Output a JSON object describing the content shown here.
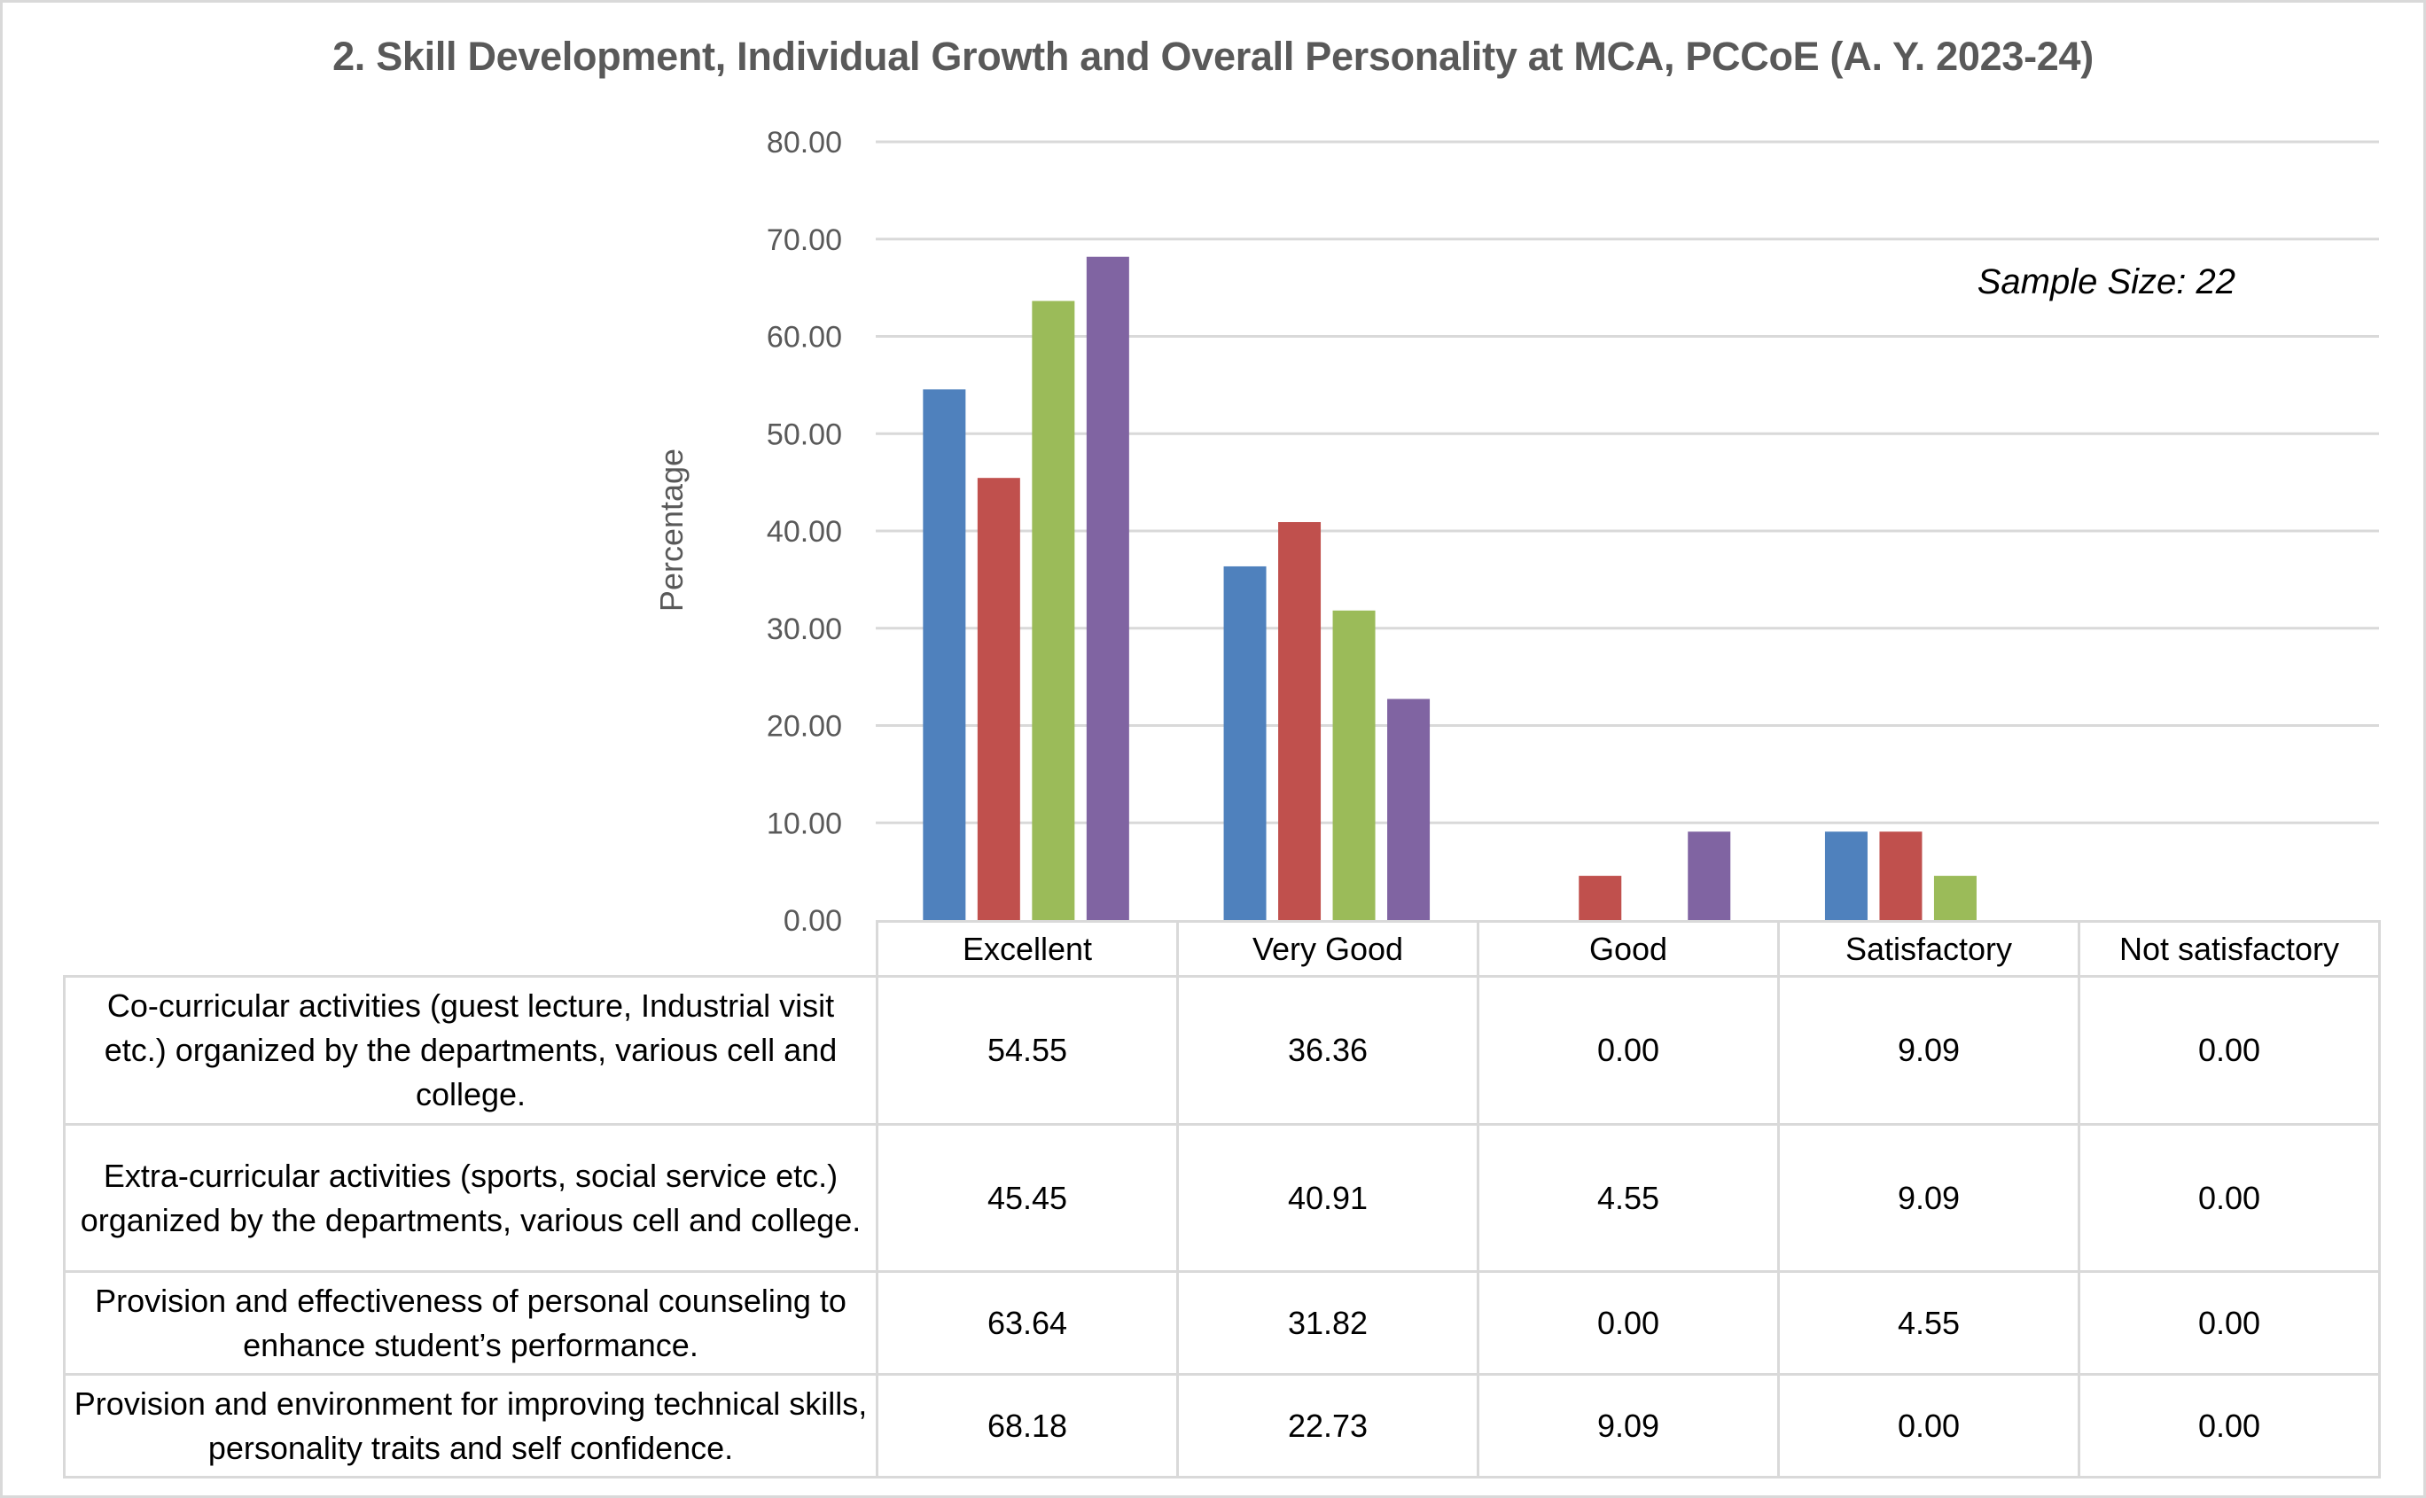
{
  "chart_data": {
    "type": "bar",
    "title": "2. Skill Development, Individual Growth and Overall Personality at MCA, PCCoE (A. Y. 2023-24)",
    "annotation": "Sample Size: 22",
    "xlabel": "",
    "ylabel": "Percentage",
    "ylim": [
      0,
      80
    ],
    "yticks": [
      "0.00",
      "10.00",
      "20.00",
      "30.00",
      "40.00",
      "50.00",
      "60.00",
      "70.00",
      "80.00"
    ],
    "ytick_values": [
      0,
      10,
      20,
      30,
      40,
      50,
      60,
      70,
      80
    ],
    "grid": true,
    "legend": "data-table-below",
    "categories": [
      "Excellent",
      "Very Good",
      "Good",
      "Satisfactory",
      "Not satisfactory"
    ],
    "series": [
      {
        "name": "Co-curricular activities (guest lecture, Industrial visit etc.) organized by the departments, various cell and college.",
        "color": "#4F81BD",
        "values": [
          54.55,
          36.36,
          0.0,
          9.09,
          0.0
        ],
        "labels": [
          "54.55",
          "36.36",
          "0.00",
          "9.09",
          "0.00"
        ]
      },
      {
        "name": "Extra-curricular activities (sports, social service etc.) organized by the departments, various cell and college.",
        "color": "#C0504D",
        "values": [
          45.45,
          40.91,
          4.55,
          9.09,
          0.0
        ],
        "labels": [
          "45.45",
          "40.91",
          "4.55",
          "9.09",
          "0.00"
        ]
      },
      {
        "name": "Provision and effectiveness of personal counseling to enhance student’s performance.",
        "color": "#9BBB59",
        "values": [
          63.64,
          31.82,
          0.0,
          4.55,
          0.0
        ],
        "labels": [
          "63.64",
          "31.82",
          "0.00",
          "4.55",
          "0.00"
        ]
      },
      {
        "name": "Provision and environment for improving technical skills, personality traits and self confidence.",
        "color": "#8064A2",
        "values": [
          68.18,
          22.73,
          9.09,
          0.0,
          0.0
        ],
        "labels": [
          "68.18",
          "22.73",
          "9.09",
          "0.00",
          "0.00"
        ]
      }
    ]
  },
  "colors": {
    "title": "#595959",
    "axis_text": "#595959",
    "gridline": "#d9d9d9",
    "border": "#d9d9d9"
  }
}
